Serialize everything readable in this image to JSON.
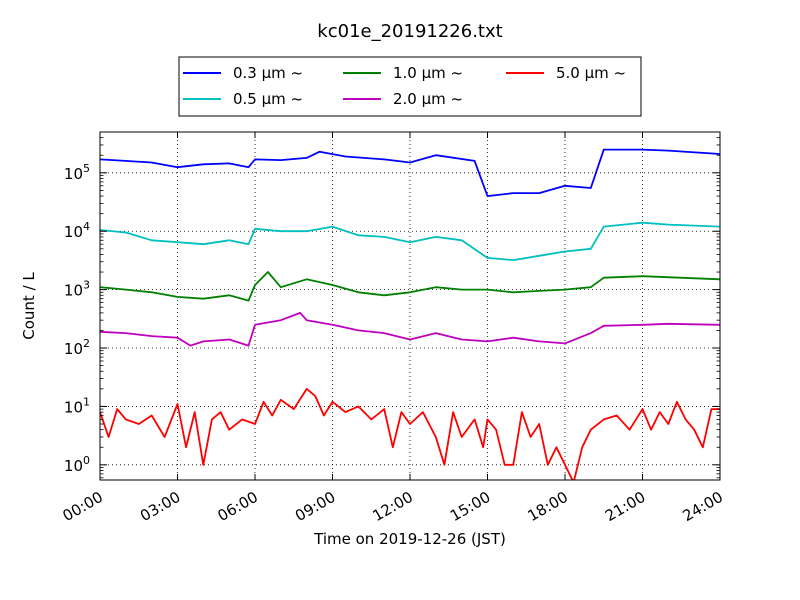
{
  "chart_data": {
    "type": "line",
    "title": "kc01e_20191226.txt",
    "xlabel": "Time on 2019-12-26 (JST)",
    "ylabel": "Count / L",
    "yscale": "log",
    "ylim": [
      0.55,
      500000
    ],
    "xlim": [
      "00:00",
      "24:00"
    ],
    "x_ticks": [
      "00:00",
      "03:00",
      "06:00",
      "09:00",
      "12:00",
      "15:00",
      "18:00",
      "21:00",
      "24:00"
    ],
    "y_ticks": [
      {
        "value": 1,
        "label": "10^0"
      },
      {
        "value": 10,
        "label": "10^1"
      },
      {
        "value": 100,
        "label": "10^2"
      },
      {
        "value": 1000,
        "label": "10^3"
      },
      {
        "value": 10000,
        "label": "10^4"
      },
      {
        "value": 100000,
        "label": "10^5"
      }
    ],
    "grid": true,
    "legend_position": "top",
    "series": [
      {
        "name": "0.3 μm ~",
        "color": "#0000ff",
        "points": [
          [
            "00:00",
            170000
          ],
          [
            "01:00",
            160000
          ],
          [
            "02:00",
            150000
          ],
          [
            "03:00",
            125000
          ],
          [
            "04:00",
            140000
          ],
          [
            "05:00",
            145000
          ],
          [
            "05:45",
            125000
          ],
          [
            "06:00",
            170000
          ],
          [
            "07:00",
            165000
          ],
          [
            "08:00",
            180000
          ],
          [
            "08:30",
            230000
          ],
          [
            "09:30",
            190000
          ],
          [
            "11:00",
            170000
          ],
          [
            "12:00",
            150000
          ],
          [
            "13:00",
            200000
          ],
          [
            "14:30",
            160000
          ],
          [
            "15:00",
            40000
          ],
          [
            "16:00",
            45000
          ],
          [
            "17:00",
            45000
          ],
          [
            "18:00",
            60000
          ],
          [
            "19:00",
            55000
          ],
          [
            "19:30",
            250000
          ],
          [
            "21:00",
            250000
          ],
          [
            "22:00",
            240000
          ],
          [
            "24:00",
            210000
          ]
        ]
      },
      {
        "name": "0.5 μm ~",
        "color": "#00bfbf",
        "points": [
          [
            "00:00",
            10500
          ],
          [
            "01:00",
            9500
          ],
          [
            "02:00",
            7000
          ],
          [
            "03:00",
            6500
          ],
          [
            "04:00",
            6000
          ],
          [
            "05:00",
            7000
          ],
          [
            "05:45",
            6000
          ],
          [
            "06:00",
            11000
          ],
          [
            "07:00",
            10000
          ],
          [
            "08:00",
            10000
          ],
          [
            "09:00",
            12000
          ],
          [
            "10:00",
            8500
          ],
          [
            "11:00",
            8000
          ],
          [
            "12:00",
            6500
          ],
          [
            "13:00",
            8000
          ],
          [
            "14:00",
            7000
          ],
          [
            "15:00",
            3500
          ],
          [
            "16:00",
            3200
          ],
          [
            "17:00",
            3800
          ],
          [
            "18:00",
            4500
          ],
          [
            "19:00",
            5000
          ],
          [
            "19:30",
            12000
          ],
          [
            "21:00",
            14000
          ],
          [
            "22:00",
            13000
          ],
          [
            "24:00",
            12000
          ]
        ]
      },
      {
        "name": "1.0 μm ~",
        "color": "#008000",
        "points": [
          [
            "00:00",
            1100
          ],
          [
            "01:00",
            1000
          ],
          [
            "02:00",
            900
          ],
          [
            "03:00",
            750
          ],
          [
            "04:00",
            700
          ],
          [
            "05:00",
            800
          ],
          [
            "05:45",
            650
          ],
          [
            "06:00",
            1200
          ],
          [
            "06:30",
            2000
          ],
          [
            "07:00",
            1100
          ],
          [
            "08:00",
            1500
          ],
          [
            "09:00",
            1200
          ],
          [
            "10:00",
            900
          ],
          [
            "11:00",
            800
          ],
          [
            "12:00",
            900
          ],
          [
            "13:00",
            1100
          ],
          [
            "14:00",
            1000
          ],
          [
            "15:00",
            1000
          ],
          [
            "16:00",
            900
          ],
          [
            "17:00",
            950
          ],
          [
            "18:00",
            1000
          ],
          [
            "19:00",
            1100
          ],
          [
            "19:30",
            1600
          ],
          [
            "21:00",
            1700
          ],
          [
            "24:00",
            1500
          ]
        ]
      },
      {
        "name": "2.0 μm ~",
        "color": "#bf00bf",
        "points": [
          [
            "00:00",
            190
          ],
          [
            "01:00",
            180
          ],
          [
            "02:00",
            160
          ],
          [
            "03:00",
            150
          ],
          [
            "03:30",
            110
          ],
          [
            "04:00",
            130
          ],
          [
            "05:00",
            140
          ],
          [
            "05:45",
            110
          ],
          [
            "06:00",
            250
          ],
          [
            "07:00",
            300
          ],
          [
            "07:45",
            400
          ],
          [
            "08:00",
            300
          ],
          [
            "09:00",
            250
          ],
          [
            "10:00",
            200
          ],
          [
            "11:00",
            180
          ],
          [
            "12:00",
            140
          ],
          [
            "13:00",
            180
          ],
          [
            "14:00",
            140
          ],
          [
            "15:00",
            130
          ],
          [
            "16:00",
            150
          ],
          [
            "17:00",
            130
          ],
          [
            "18:00",
            120
          ],
          [
            "19:00",
            180
          ],
          [
            "19:30",
            240
          ],
          [
            "21:00",
            250
          ],
          [
            "22:00",
            260
          ],
          [
            "24:00",
            250
          ]
        ]
      },
      {
        "name": "5.0 μm ~",
        "color": "#ff0000",
        "points": [
          [
            "00:00",
            8
          ],
          [
            "00:20",
            3
          ],
          [
            "00:40",
            9
          ],
          [
            "01:00",
            6
          ],
          [
            "01:30",
            5
          ],
          [
            "02:00",
            7
          ],
          [
            "02:30",
            3
          ],
          [
            "03:00",
            11
          ],
          [
            "03:20",
            2
          ],
          [
            "03:40",
            8
          ],
          [
            "04:00",
            1
          ],
          [
            "04:20",
            6
          ],
          [
            "04:40",
            8
          ],
          [
            "05:00",
            4
          ],
          [
            "05:30",
            6
          ],
          [
            "06:00",
            5
          ],
          [
            "06:20",
            12
          ],
          [
            "06:40",
            7
          ],
          [
            "07:00",
            13
          ],
          [
            "07:30",
            9
          ],
          [
            "08:00",
            20
          ],
          [
            "08:20",
            15
          ],
          [
            "08:40",
            7
          ],
          [
            "09:00",
            12
          ],
          [
            "09:30",
            8
          ],
          [
            "10:00",
            10
          ],
          [
            "10:30",
            6
          ],
          [
            "11:00",
            9
          ],
          [
            "11:20",
            2
          ],
          [
            "11:40",
            8
          ],
          [
            "12:00",
            5
          ],
          [
            "12:30",
            8
          ],
          [
            "13:00",
            3
          ],
          [
            "13:20",
            1
          ],
          [
            "13:40",
            8
          ],
          [
            "14:00",
            3
          ],
          [
            "14:30",
            6
          ],
          [
            "14:50",
            2
          ],
          [
            "15:00",
            6
          ],
          [
            "15:20",
            4
          ],
          [
            "15:40",
            1
          ],
          [
            "16:00",
            1
          ],
          [
            "16:20",
            8
          ],
          [
            "16:40",
            3
          ],
          [
            "17:00",
            5
          ],
          [
            "17:20",
            1
          ],
          [
            "17:40",
            2
          ],
          [
            "18:00",
            1
          ],
          [
            "18:20",
            0.5
          ],
          [
            "18:40",
            2
          ],
          [
            "19:00",
            4
          ],
          [
            "19:30",
            6
          ],
          [
            "20:00",
            7
          ],
          [
            "20:30",
            4
          ],
          [
            "21:00",
            9
          ],
          [
            "21:20",
            4
          ],
          [
            "21:40",
            8
          ],
          [
            "22:00",
            5
          ],
          [
            "22:20",
            12
          ],
          [
            "22:40",
            6
          ],
          [
            "23:00",
            4
          ],
          [
            "23:20",
            2
          ],
          [
            "23:40",
            9
          ],
          [
            "24:00",
            9
          ]
        ]
      }
    ]
  }
}
